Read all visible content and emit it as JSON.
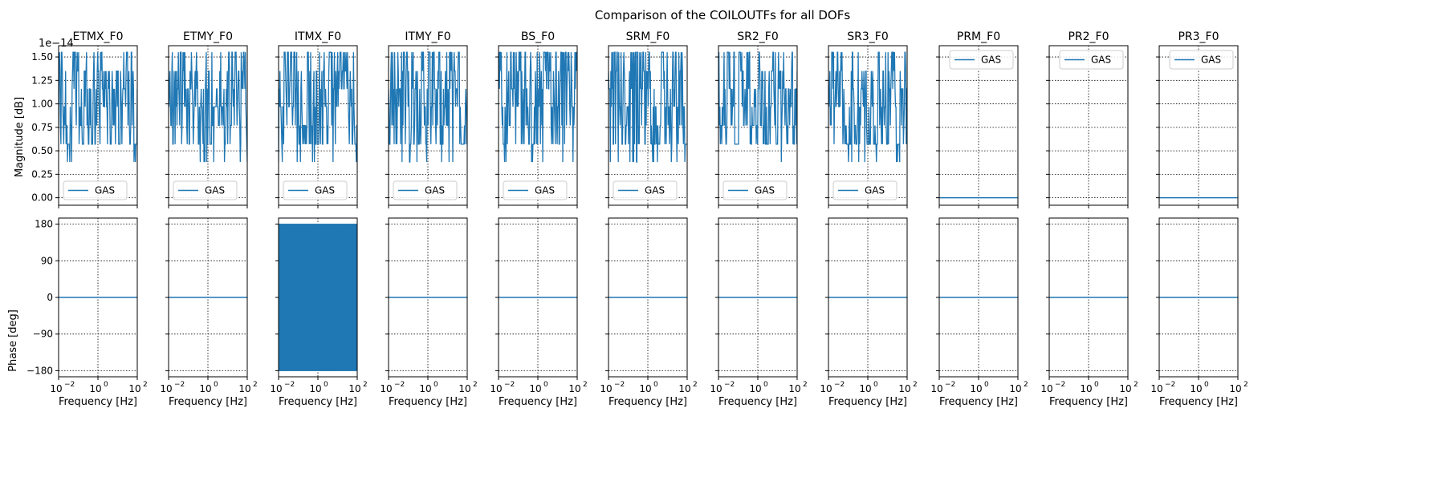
{
  "figure": {
    "suptitle": "Comparison of the COILOUTFs for all DOFs"
  },
  "chart_data": {
    "type": "line",
    "layout": "grid of 2 rows x 11 columns, shared axes",
    "top_row": {
      "ylabel": "Magnitude [dB]",
      "yticks": [
        "0.00",
        "0.25",
        "0.50",
        "0.75",
        "1.00",
        "1.25",
        "1.50"
      ],
      "ytick_values": [
        0.0,
        0.25,
        0.5,
        0.75,
        1.0,
        1.25,
        1.5
      ],
      "offset_text": "1e−14",
      "ylim": [
        -0.08,
        1.62
      ],
      "legend_low": "lower-left",
      "legend_high": "upper-right"
    },
    "bottom_row": {
      "ylabel": "Phase [deg]",
      "yticks": [
        "180",
        "90",
        "0",
        "−90",
        "−180"
      ],
      "ytick_values": [
        180,
        90,
        0,
        -90,
        -180
      ],
      "ylim": [
        -195,
        195
      ]
    },
    "x_axis": {
      "scale": "log",
      "xlim": [
        0.01,
        100
      ],
      "xtick_values": [
        0.01,
        1,
        100
      ],
      "xtick_base": "10",
      "xtick_exponents": [
        "−2",
        "0",
        "2"
      ],
      "xlabel": "Frequency [Hz]"
    },
    "grid": "on (dotted)",
    "series_color": "#1f77b4",
    "series_name": "GAS",
    "panels": [
      {
        "title": "ETMX_F0",
        "magnitude": "noisy",
        "magnitude_range": [
          0.57,
          1.55
        ],
        "phase": "zero",
        "legend": "lower-left"
      },
      {
        "title": "ETMY_F0",
        "magnitude": "noisy",
        "magnitude_range": [
          0.57,
          1.55
        ],
        "phase": "zero",
        "legend": "lower-left"
      },
      {
        "title": "ITMX_F0",
        "magnitude": "noisy",
        "magnitude_range": [
          0.57,
          1.55
        ],
        "phase": "full",
        "phase_range": [
          -180,
          180
        ],
        "legend": "lower-left"
      },
      {
        "title": "ITMY_F0",
        "magnitude": "noisy",
        "magnitude_range": [
          0.57,
          1.55
        ],
        "phase": "zero",
        "legend": "lower-left"
      },
      {
        "title": "BS_F0",
        "magnitude": "noisy",
        "magnitude_range": [
          0.57,
          1.55
        ],
        "phase": "zero",
        "legend": "lower-left"
      },
      {
        "title": "SRM_F0",
        "magnitude": "noisy",
        "magnitude_range": [
          0.57,
          1.55
        ],
        "phase": "zero",
        "legend": "lower-left"
      },
      {
        "title": "SR2_F0",
        "magnitude": "noisy",
        "magnitude_range": [
          0.57,
          1.55
        ],
        "phase": "zero",
        "legend": "lower-left"
      },
      {
        "title": "SR3_F0",
        "magnitude": "noisy",
        "magnitude_range": [
          0.57,
          1.55
        ],
        "phase": "zero",
        "legend": "lower-left"
      },
      {
        "title": "PRM_F0",
        "magnitude": "zero",
        "phase": "zero",
        "legend": "upper-right"
      },
      {
        "title": "PR2_F0",
        "magnitude": "none",
        "phase": "zero",
        "legend": "upper-right"
      },
      {
        "title": "PR3_F0",
        "magnitude": "zero",
        "phase": "zero",
        "legend": "upper-right"
      }
    ]
  }
}
